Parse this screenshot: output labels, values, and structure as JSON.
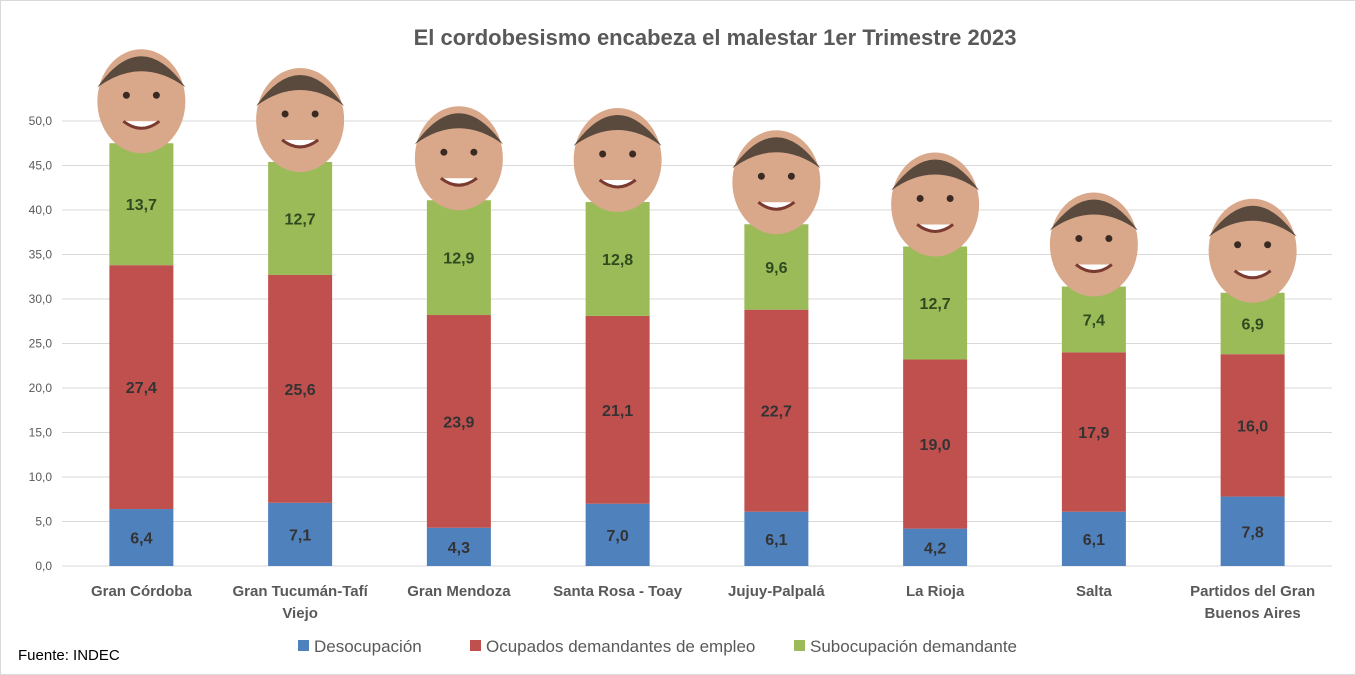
{
  "chart_data": {
    "type": "bar",
    "stacked": true,
    "title": "El cordobesismo encabeza el malestar 1er Trimestre 2023",
    "source": "Fuente:  INDEC",
    "categories": [
      [
        "Gran Córdoba"
      ],
      [
        "Gran Tucumán-Tafí",
        "Viejo"
      ],
      [
        "Gran Mendoza"
      ],
      [
        "Santa Rosa - Toay"
      ],
      [
        "Jujuy-Palpalá"
      ],
      [
        "La Rioja"
      ],
      [
        "Salta"
      ],
      [
        "Partidos del Gran",
        "Buenos Aires"
      ]
    ],
    "series": [
      {
        "name": "Desocupación",
        "color": "#4f81bd",
        "label_color": "#333333",
        "values": [
          6.4,
          7.1,
          4.3,
          7.0,
          6.1,
          4.2,
          6.1,
          7.8
        ]
      },
      {
        "name": "Ocupados demandantes de empleo",
        "color": "#c0504d",
        "label_color": "#333333",
        "values": [
          27.4,
          25.6,
          23.9,
          21.1,
          22.7,
          19.0,
          17.9,
          16.0
        ]
      },
      {
        "name": "Subocupación demandante",
        "color": "#9bbb59",
        "label_color": "#2f4a1f",
        "values": [
          13.7,
          12.7,
          12.9,
          12.8,
          9.6,
          12.7,
          7.4,
          6.9
        ]
      }
    ],
    "ylim": [
      0,
      50
    ],
    "yticks": [
      "0,0",
      "5,0",
      "10,0",
      "15,0",
      "20,0",
      "25,0",
      "30,0",
      "35,0",
      "40,0",
      "45,0",
      "50,0"
    ],
    "grid": true,
    "legend": "bottom",
    "annotations": "politician face photo above each bar"
  }
}
